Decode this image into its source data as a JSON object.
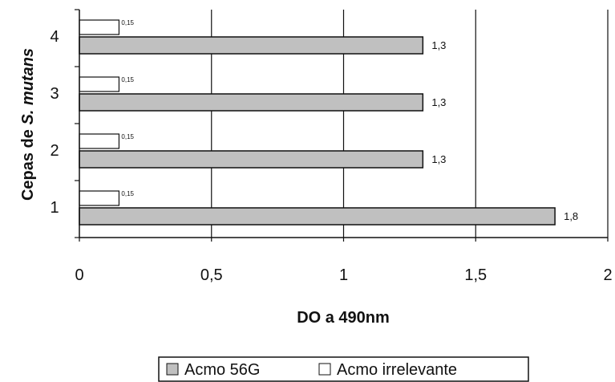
{
  "chart_data": {
    "type": "bar",
    "orientation": "horizontal",
    "categories": [
      "1",
      "2",
      "3",
      "4"
    ],
    "series": [
      {
        "name": "Acmo 56G",
        "values": [
          1.8,
          1.3,
          1.3,
          1.3
        ],
        "labels": [
          "1,8",
          "1,3",
          "1,3",
          "1,3"
        ],
        "color": "#c0c0c0"
      },
      {
        "name": "Acmo irrelevante",
        "values": [
          0.15,
          0.15,
          0.15,
          0.15
        ],
        "labels": [
          "0,15",
          "0,15",
          "0,15",
          "0,15"
        ],
        "color": "#ffffff"
      }
    ],
    "xlabel": "DO a 490nm",
    "ylabel_prefix": "Cepas de ",
    "ylabel_italic": "S. mutans",
    "xlim": [
      0,
      2
    ],
    "xticks": [
      0,
      0.5,
      1,
      1.5,
      2
    ],
    "xtick_labels": [
      "0",
      "0,5",
      "1",
      "1,5",
      "2"
    ],
    "grid": "vertical",
    "legend_position": "bottom"
  }
}
